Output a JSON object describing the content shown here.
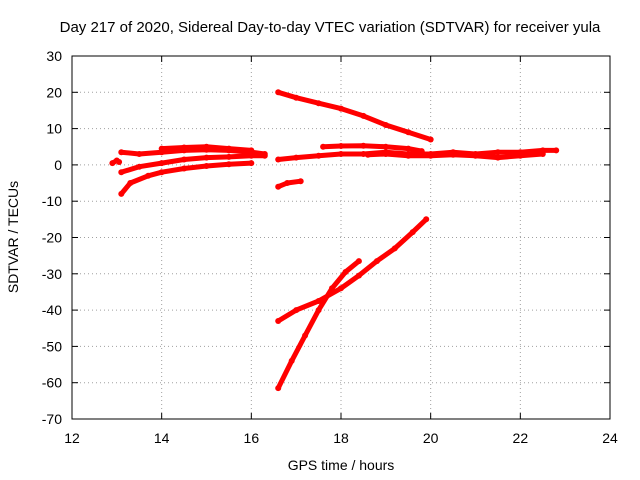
{
  "chart_data": {
    "type": "line",
    "title": "Day 217 of 2020, Sidereal Day-to-day VTEC variation (SDTVAR) for receiver yula",
    "xlabel": "GPS time / hours",
    "ylabel": "SDTVAR / TECUs",
    "xlim": [
      12,
      24
    ],
    "ylim": [
      -70,
      30
    ],
    "xticks": [
      "12",
      "14",
      "16",
      "18",
      "20",
      "22",
      "24"
    ],
    "yticks": [
      "30",
      "20",
      "10",
      "0",
      "-10",
      "-20",
      "-30",
      "-40",
      "-50",
      "-60",
      "-70"
    ],
    "grid": true,
    "legend": "none",
    "color": "#ff0000",
    "series": [
      {
        "x": [
          12.9,
          13.0,
          13.05
        ],
        "y": [
          0.5,
          1.2,
          0.8
        ]
      },
      {
        "x": [
          13.1,
          13.5,
          14.0,
          14.5,
          15.0,
          15.5,
          16.0,
          16.3
        ],
        "y": [
          3.5,
          3.0,
          3.5,
          4.0,
          4.2,
          4.0,
          3.5,
          3.0
        ]
      },
      {
        "x": [
          13.1,
          13.5,
          14.0,
          14.5,
          15.0,
          15.5,
          16.0,
          16.3
        ],
        "y": [
          -2.0,
          -0.5,
          0.5,
          1.5,
          2.0,
          2.2,
          2.5,
          2.5
        ]
      },
      {
        "x": [
          13.1,
          13.3,
          13.7,
          14.0,
          14.5,
          15.0,
          15.5,
          16.0
        ],
        "y": [
          -8.0,
          -5.0,
          -3.0,
          -2.0,
          -1.0,
          -0.3,
          0.2,
          0.5
        ]
      },
      {
        "x": [
          14.0,
          14.5,
          15.0,
          15.5,
          16.0
        ],
        "y": [
          4.5,
          4.8,
          5.0,
          4.5,
          4.0
        ]
      },
      {
        "x": [
          16.6,
          17.0,
          17.5,
          18.0,
          18.5,
          19.0,
          19.5,
          20.0
        ],
        "y": [
          20.0,
          18.5,
          17.0,
          15.5,
          13.5,
          11.0,
          9.0,
          7.0
        ]
      },
      {
        "x": [
          16.6,
          17.0,
          17.5,
          18.0,
          18.5,
          19.0,
          19.5,
          20.0,
          20.5,
          21.0,
          21.5,
          22.0,
          22.5,
          22.8
        ],
        "y": [
          1.5,
          2.0,
          2.5,
          3.0,
          3.0,
          3.5,
          3.0,
          3.0,
          3.5,
          3.0,
          3.5,
          3.5,
          4.0,
          4.0
        ]
      },
      {
        "x": [
          16.6,
          16.8,
          17.1
        ],
        "y": [
          -6.0,
          -5.0,
          -4.5
        ]
      },
      {
        "x": [
          17.6,
          18.0,
          18.5,
          19.0,
          19.5,
          19.8
        ],
        "y": [
          5.0,
          5.2,
          5.3,
          5.0,
          4.5,
          3.8
        ]
      },
      {
        "x": [
          18.6,
          19.0,
          19.5,
          20.0,
          20.5,
          21.0,
          21.5,
          22.0,
          22.5
        ],
        "y": [
          2.8,
          3.0,
          2.5,
          2.5,
          2.8,
          2.5,
          2.0,
          2.5,
          3.0
        ]
      },
      {
        "x": [
          16.6,
          17.0,
          17.5,
          18.0,
          18.4,
          18.8,
          19.2,
          19.6,
          19.9
        ],
        "y": [
          -43.0,
          -40.0,
          -37.5,
          -34.0,
          -30.5,
          -26.5,
          -23.0,
          -18.5,
          -15.0
        ]
      },
      {
        "x": [
          16.6,
          16.9,
          17.2,
          17.5,
          17.8,
          18.1,
          18.4
        ],
        "y": [
          -61.5,
          -54.0,
          -47.0,
          -40.0,
          -34.0,
          -29.5,
          -26.5
        ]
      }
    ]
  }
}
